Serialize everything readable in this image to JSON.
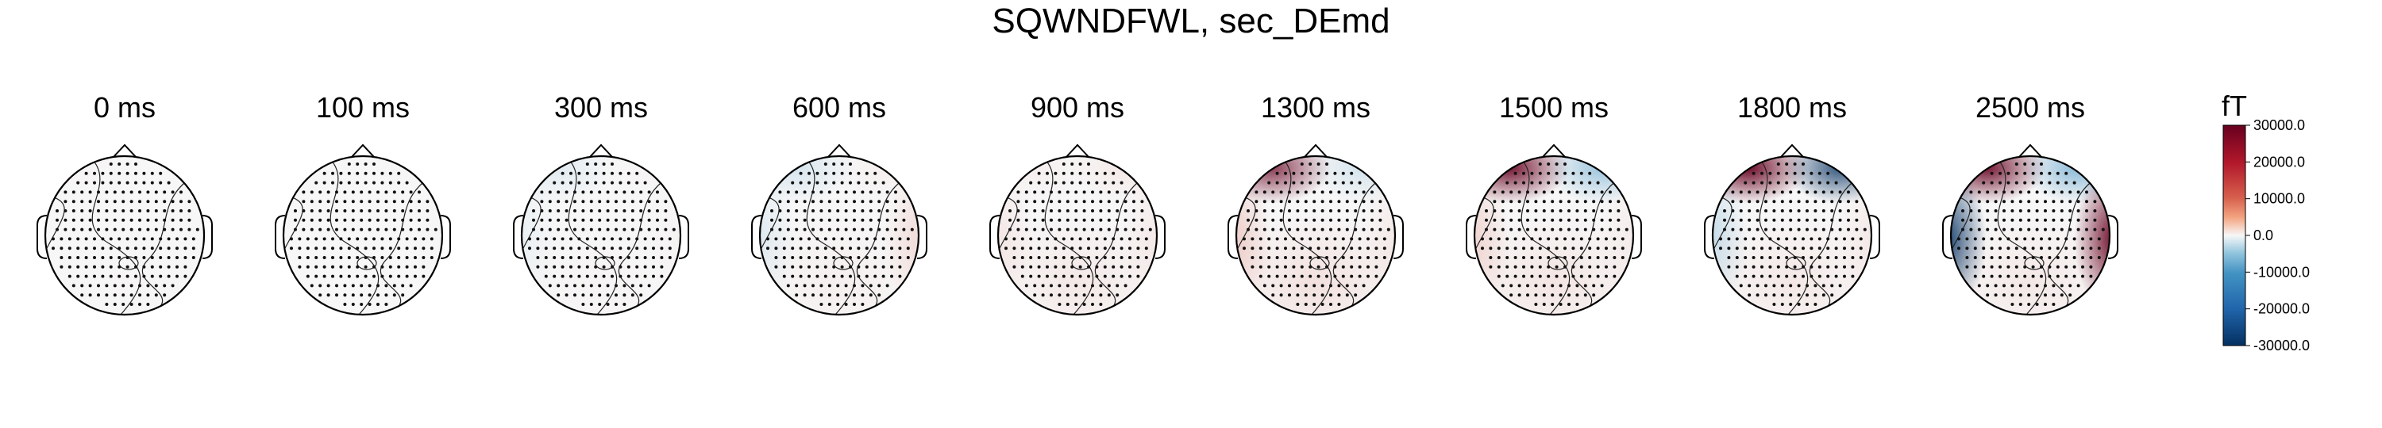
{
  "title": "SQWNDFWL, sec_DEmd",
  "colors": {
    "max_red": "#67001f",
    "mid_red": "#d6604d",
    "neutral": "#f7f7f7",
    "mid_blue": "#4393c3",
    "max_blue": "#053061",
    "outline": "#000000"
  },
  "chart_data": {
    "type": "heatmap",
    "title": "SQWNDFWL, sec_DEmd",
    "panels": [
      {
        "label": "0 ms",
        "pattern": {
          "front_left": 0.02,
          "front_right": 0.0,
          "left": 0.0,
          "right": 0.0,
          "back": 0.01
        }
      },
      {
        "label": "100 ms",
        "pattern": {
          "front_left": 0.01,
          "front_right": -0.01,
          "left": 0.0,
          "right": 0.01,
          "back": 0.0
        }
      },
      {
        "label": "300 ms",
        "pattern": {
          "front_left": -0.12,
          "front_right": 0.02,
          "left": -0.08,
          "right": 0.03,
          "back": 0.02
        }
      },
      {
        "label": "600 ms",
        "pattern": {
          "front_left": -0.18,
          "front_right": 0.05,
          "left": -0.15,
          "right": 0.2,
          "back": 0.05
        }
      },
      {
        "label": "900 ms",
        "pattern": {
          "front_left": 0.05,
          "front_right": 0.1,
          "left": 0.12,
          "right": 0.1,
          "back": 0.1
        }
      },
      {
        "label": "1300 ms",
        "pattern": {
          "front_left": 0.75,
          "front_right": -0.2,
          "left": 0.3,
          "right": 0.1,
          "back": 0.15
        }
      },
      {
        "label": "1500 ms",
        "pattern": {
          "front_left": 0.9,
          "front_right": -0.5,
          "left": 0.25,
          "right": 0.08,
          "back": 0.12
        }
      },
      {
        "label": "1800 ms",
        "pattern": {
          "front_left": 0.95,
          "front_right": -0.8,
          "left": -0.3,
          "right": 0.1,
          "back": 0.1
        }
      },
      {
        "label": "2500 ms",
        "pattern": {
          "front_left": 0.9,
          "front_right": -0.6,
          "left": -0.9,
          "right": 0.95,
          "back": 0.1
        }
      }
    ],
    "colorbar": {
      "unit": "fT",
      "vmin": -30000.0,
      "vmax": 30000.0,
      "ticks": [
        "30000.0",
        "20000.0",
        "10000.0",
        "0.0",
        "-10000.0",
        "-20000.0",
        "-30000.0"
      ],
      "tick_values": [
        30000,
        20000,
        10000,
        0,
        -10000,
        -20000,
        -30000
      ],
      "colormap": "RdBu_r"
    }
  }
}
